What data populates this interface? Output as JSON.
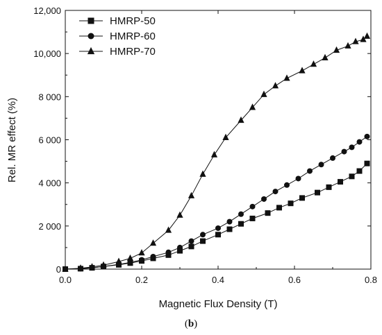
{
  "panel_label_open": "(",
  "panel_label_letter": "b",
  "panel_label_close": ")",
  "chart_data": {
    "type": "line",
    "title": "",
    "xlabel": "Magnetic Flux Density (T)",
    "ylabel": "Rel. MR effect (%)",
    "xlim": [
      0,
      0.8
    ],
    "ylim": [
      0,
      12000
    ],
    "x_ticks": [
      "0.0",
      "0.2",
      "0.4",
      "0.6",
      "0.8"
    ],
    "x_tick_values": [
      0,
      0.2,
      0.4,
      0.6,
      0.8
    ],
    "y_ticks": [
      "0",
      "2 000",
      "4 000",
      "6 000",
      "8 000",
      "10,000",
      "12,000"
    ],
    "y_tick_values": [
      0,
      2000,
      4000,
      6000,
      8000,
      10000,
      12000
    ],
    "grid": false,
    "legend_position": "top-left",
    "series": [
      {
        "name": "HMRP-50",
        "marker": "square",
        "x": [
          0.0,
          0.04,
          0.07,
          0.1,
          0.14,
          0.17,
          0.2,
          0.23,
          0.27,
          0.3,
          0.33,
          0.36,
          0.4,
          0.43,
          0.46,
          0.49,
          0.53,
          0.56,
          0.59,
          0.62,
          0.66,
          0.69,
          0.72,
          0.75,
          0.77,
          0.79
        ],
        "y": [
          0,
          20,
          60,
          120,
          200,
          280,
          380,
          500,
          650,
          850,
          1050,
          1300,
          1600,
          1850,
          2100,
          2350,
          2600,
          2850,
          3050,
          3300,
          3550,
          3800,
          4050,
          4300,
          4550,
          4900
        ]
      },
      {
        "name": "HMRP-60",
        "marker": "circle",
        "x": [
          0.0,
          0.04,
          0.07,
          0.1,
          0.14,
          0.17,
          0.2,
          0.23,
          0.27,
          0.3,
          0.33,
          0.36,
          0.4,
          0.43,
          0.46,
          0.49,
          0.52,
          0.55,
          0.58,
          0.61,
          0.64,
          0.67,
          0.7,
          0.73,
          0.75,
          0.77,
          0.79
        ],
        "y": [
          0,
          20,
          60,
          120,
          220,
          310,
          430,
          580,
          780,
          1000,
          1300,
          1600,
          1900,
          2200,
          2550,
          2900,
          3250,
          3600,
          3900,
          4200,
          4550,
          4850,
          5150,
          5450,
          5650,
          5900,
          6150
        ]
      },
      {
        "name": "HMRP-70",
        "marker": "triangle",
        "x": [
          0.0,
          0.04,
          0.07,
          0.1,
          0.14,
          0.17,
          0.2,
          0.23,
          0.27,
          0.3,
          0.33,
          0.36,
          0.39,
          0.42,
          0.46,
          0.49,
          0.52,
          0.55,
          0.58,
          0.62,
          0.65,
          0.68,
          0.71,
          0.74,
          0.76,
          0.78,
          0.79
        ],
        "y": [
          0,
          40,
          100,
          180,
          350,
          500,
          750,
          1200,
          1800,
          2500,
          3400,
          4400,
          5300,
          6100,
          6900,
          7500,
          8100,
          8500,
          8850,
          9200,
          9500,
          9800,
          10150,
          10350,
          10550,
          10650,
          10800
        ]
      }
    ]
  }
}
